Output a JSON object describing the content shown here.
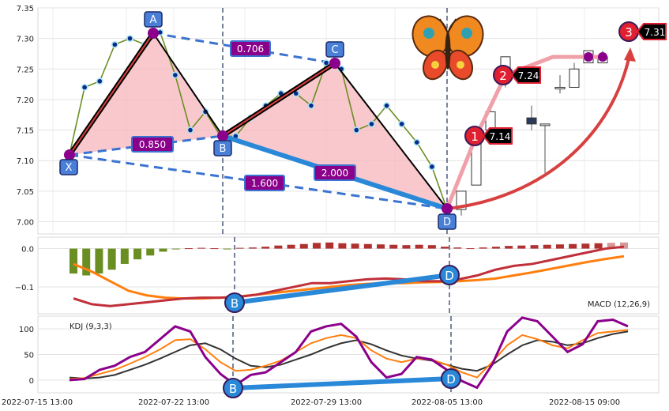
{
  "chart_data": [
    {
      "type": "line",
      "panel": "price",
      "ylim": [
        6.98,
        7.35
      ],
      "y_ticks": [
        "7.35",
        "7.30",
        "7.25",
        "7.20",
        "7.15",
        "7.10",
        "7.05",
        "7.00"
      ],
      "x_ticks": [
        "2022-07-15 13:00",
        "2022-07-22 13:00",
        "2022-07-29 13:00",
        "2022-08-05 13:00",
        "2022-08-15 09:00"
      ],
      "grid": true,
      "series": [
        {
          "values": [
            7.11,
            7.22,
            7.23,
            7.29,
            7.3,
            7.29,
            7.31,
            7.24,
            7.15,
            7.18,
            7.14,
            7.14,
            7.17,
            7.19,
            7.21,
            7.21,
            7.19,
            7.26,
            7.25,
            7.15,
            7.16,
            7.19,
            7.16,
            7.13,
            7.09,
            7.02
          ]
        }
      ],
      "candles": [
        {
          "open": 7.02,
          "close": 7.05,
          "high": 7.05,
          "low": 7.01
        },
        {
          "open": 7.06,
          "close": 7.14,
          "high": 7.15,
          "low": 7.06
        },
        {
          "open": 7.15,
          "close": 7.18,
          "high": 7.19,
          "low": 7.14
        },
        {
          "open": 7.23,
          "close": 7.27,
          "high": 7.27,
          "low": 7.22
        },
        {
          "open": 7.17,
          "close": 7.16,
          "high": 7.19,
          "low": 7.15
        },
        {
          "open": 7.16,
          "close": 7.16,
          "high": 7.16,
          "low": 7.08
        },
        {
          "open": 7.22,
          "close": 7.22,
          "high": 7.24,
          "low": 7.21
        },
        {
          "open": 7.22,
          "close": 7.25,
          "high": 7.26,
          "low": 7.22
        },
        {
          "open": 7.26,
          "close": 7.28,
          "high": 7.28,
          "low": 7.26
        },
        {
          "open": 7.26,
          "close": 7.27,
          "high": 7.28,
          "low": 7.26
        }
      ],
      "pattern_points": [
        {
          "label": "X",
          "value": 7.11
        },
        {
          "label": "A",
          "value": 7.31
        },
        {
          "label": "B",
          "value": 7.14
        },
        {
          "label": "C",
          "value": 7.26
        },
        {
          "label": "D",
          "value": 7.02
        }
      ],
      "ratio_labels": [
        "0.706",
        "0.850",
        "1.600",
        "2.000"
      ],
      "targets": [
        {
          "label": "1",
          "value": "7.14"
        },
        {
          "label": "2",
          "value": "7.24"
        },
        {
          "label": "3",
          "value": "7.31"
        }
      ]
    },
    {
      "type": "bar",
      "panel": "macd",
      "title": "MACD (12,26,9)",
      "ylim": [
        -0.17,
        0.03
      ],
      "y_ticks": [
        "0.0",
        "−0.1"
      ],
      "histogram": [
        -0.065,
        -0.07,
        -0.065,
        -0.055,
        -0.04,
        -0.028,
        -0.018,
        -0.008,
        -0.001,
        0.001,
        0.002,
        0.001,
        -0.001,
        0.002,
        0.003,
        0.005,
        0.008,
        0.01,
        0.012,
        0.015,
        0.016,
        0.014,
        0.013,
        0.012,
        0.011,
        0.01,
        0.009,
        0.01,
        0.009,
        0.005,
        0.003,
        0.001,
        0.003,
        0.005,
        0.007,
        0.008,
        0.009,
        0.01,
        0.011,
        0.012,
        0.013,
        0.014,
        0.015,
        0.016
      ],
      "macd_line": [
        -0.13,
        -0.145,
        -0.15,
        -0.145,
        -0.14,
        -0.135,
        -0.13,
        -0.128,
        -0.128,
        -0.126,
        -0.12,
        -0.11,
        -0.1,
        -0.09,
        -0.09,
        -0.085,
        -0.08,
        -0.078,
        -0.08,
        -0.085,
        -0.085,
        -0.08,
        -0.07,
        -0.055,
        -0.045,
        -0.04,
        -0.03,
        -0.02,
        -0.01,
        0.0,
        0.005
      ],
      "signal_line": [
        -0.04,
        -0.06,
        -0.085,
        -0.11,
        -0.122,
        -0.128,
        -0.13,
        -0.13,
        -0.128,
        -0.125,
        -0.12,
        -0.115,
        -0.11,
        -0.105,
        -0.1,
        -0.095,
        -0.092,
        -0.09,
        -0.09,
        -0.088,
        -0.087,
        -0.085,
        -0.082,
        -0.078,
        -0.07,
        -0.062,
        -0.053,
        -0.044,
        -0.035,
        -0.027,
        -0.02
      ],
      "points": [
        "B",
        "D"
      ]
    },
    {
      "type": "line",
      "panel": "kdj",
      "title": "KDJ (9,3,3)",
      "ylim": [
        -25,
        125
      ],
      "y_ticks": [
        "100",
        "50",
        "0"
      ],
      "series": [
        {
          "values": [
            5,
            3,
            5,
            10,
            20,
            30,
            42,
            55,
            68,
            72,
            60,
            42,
            28,
            25,
            30,
            40,
            50,
            62,
            72,
            78,
            70,
            58,
            48,
            42,
            38,
            30,
            22,
            18,
            30,
            50,
            68,
            78,
            75,
            68,
            72,
            82,
            90,
            95
          ]
        },
        {
          "values": [
            2,
            4,
            12,
            20,
            32,
            45,
            60,
            78,
            80,
            60,
            35,
            18,
            20,
            28,
            38,
            55,
            72,
            82,
            88,
            82,
            58,
            42,
            35,
            42,
            40,
            30,
            15,
            5,
            35,
            68,
            88,
            80,
            68,
            62,
            78,
            92,
            95,
            98
          ]
        },
        {
          "values": [
            0,
            2,
            20,
            28,
            45,
            55,
            80,
            105,
            95,
            45,
            12,
            -10,
            10,
            15,
            35,
            55,
            95,
            105,
            110,
            85,
            35,
            5,
            12,
            45,
            40,
            20,
            -2,
            -15,
            30,
            95,
            122,
            115,
            85,
            55,
            70,
            115,
            118,
            105
          ]
        }
      ],
      "points": [
        "B",
        "D"
      ]
    }
  ],
  "labels": {
    "macd_title": "MACD (12,26,9)",
    "kdj_title": "KDJ (9,3,3)"
  },
  "colors": {
    "line": "#6b8e23",
    "bull": "#b03030",
    "bear": "#6b8e23",
    "pattern_fill": "#f4a0a8",
    "dash": "#3b73d0",
    "ratio_box": "#8a008a",
    "point_box": "#4a7fd8",
    "target": "#e02030",
    "orange": "#ff7f0e",
    "red": "#c0303a",
    "purple": "#8b008b",
    "dark": "#333333",
    "blue_band": "#2a88d8"
  }
}
